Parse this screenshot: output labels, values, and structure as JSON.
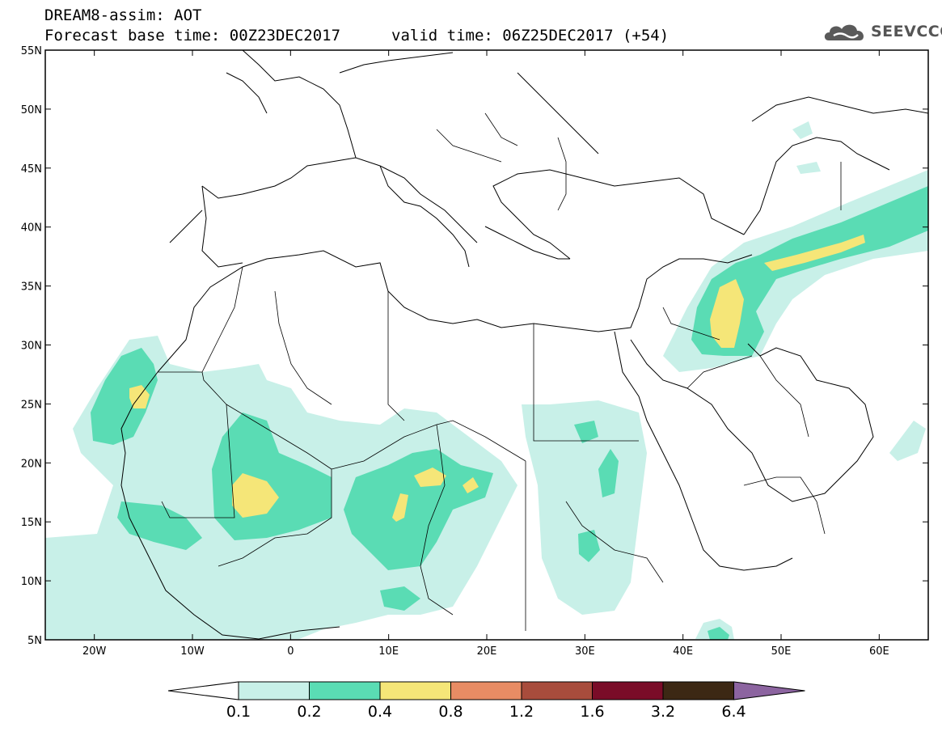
{
  "header": {
    "title_line1": "DREAM8-assim: AOT",
    "title_line2": "Forecast base time: 00Z23DEC2017",
    "valid_time": "valid time: 06Z25DEC2017 (+54)"
  },
  "logo": {
    "text": "SEEVCCC",
    "icon": "cloud-logo-icon"
  },
  "map": {
    "lon_range": [
      -25,
      65
    ],
    "lat_range": [
      5,
      55
    ],
    "lat_ticks": [
      "55N",
      "50N",
      "45N",
      "40N",
      "35N",
      "30N",
      "25N",
      "20N",
      "15N",
      "10N",
      "5N"
    ],
    "lon_ticks": [
      "20W",
      "10W",
      "0",
      "10E",
      "20E",
      "30E",
      "40E",
      "50E",
      "60E"
    ]
  },
  "colorbar": {
    "labels": [
      "0.1",
      "0.2",
      "0.4",
      "0.8",
      "1.2",
      "1.6",
      "3.2",
      "6.4"
    ],
    "colors": [
      "#c8f0e8",
      "#5adcb4",
      "#f5e678",
      "#e88c64",
      "#a84c3c",
      "#7a0c28",
      "#3c2814",
      "#8c64a0"
    ],
    "under_color": "#ffffff"
  }
}
